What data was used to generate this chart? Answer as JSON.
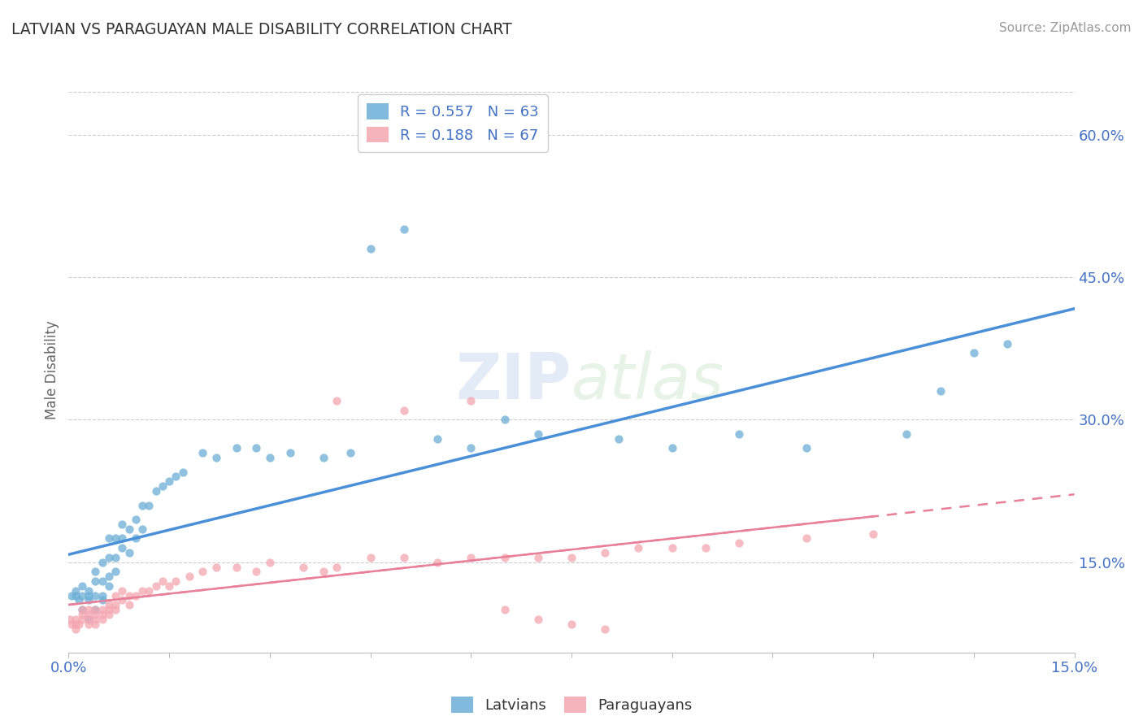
{
  "title": "LATVIAN VS PARAGUAYAN MALE DISABILITY CORRELATION CHART",
  "source": "Source: ZipAtlas.com",
  "ylabel_label": "Male Disability",
  "yticks": [
    0.15,
    0.3,
    0.45,
    0.6
  ],
  "ytick_labels": [
    "15.0%",
    "30.0%",
    "45.0%",
    "60.0%"
  ],
  "xlim": [
    0.0,
    0.15
  ],
  "ylim": [
    0.055,
    0.65
  ],
  "latvian_color": "#6baed6",
  "paraguayan_color": "#f4a6b0",
  "legend_latvian_R": "0.557",
  "legend_latvian_N": "63",
  "legend_paraguayan_R": "0.188",
  "legend_paraguayan_N": "67",
  "watermark": "ZIPatlas",
  "latvians_x": [
    0.0005,
    0.001,
    0.001,
    0.0015,
    0.002,
    0.002,
    0.002,
    0.003,
    0.003,
    0.003,
    0.003,
    0.004,
    0.004,
    0.004,
    0.004,
    0.005,
    0.005,
    0.005,
    0.005,
    0.006,
    0.006,
    0.006,
    0.006,
    0.007,
    0.007,
    0.007,
    0.008,
    0.008,
    0.008,
    0.009,
    0.009,
    0.01,
    0.01,
    0.011,
    0.011,
    0.012,
    0.013,
    0.014,
    0.015,
    0.016,
    0.017,
    0.02,
    0.022,
    0.025,
    0.028,
    0.03,
    0.033,
    0.038,
    0.042,
    0.05,
    0.055,
    0.06,
    0.065,
    0.07,
    0.045,
    0.082,
    0.09,
    0.1,
    0.11,
    0.125,
    0.13,
    0.135,
    0.14
  ],
  "latvians_y": [
    0.115,
    0.12,
    0.115,
    0.11,
    0.1,
    0.115,
    0.125,
    0.09,
    0.11,
    0.115,
    0.12,
    0.1,
    0.115,
    0.13,
    0.14,
    0.11,
    0.115,
    0.13,
    0.15,
    0.125,
    0.135,
    0.155,
    0.175,
    0.14,
    0.155,
    0.175,
    0.165,
    0.175,
    0.19,
    0.16,
    0.185,
    0.175,
    0.195,
    0.185,
    0.21,
    0.21,
    0.225,
    0.23,
    0.235,
    0.24,
    0.245,
    0.265,
    0.26,
    0.27,
    0.27,
    0.26,
    0.265,
    0.26,
    0.265,
    0.5,
    0.28,
    0.27,
    0.3,
    0.285,
    0.48,
    0.28,
    0.27,
    0.285,
    0.27,
    0.285,
    0.33,
    0.37,
    0.38
  ],
  "paraguayans_x": [
    0.0002,
    0.0005,
    0.001,
    0.001,
    0.001,
    0.0015,
    0.002,
    0.002,
    0.002,
    0.003,
    0.003,
    0.003,
    0.003,
    0.004,
    0.004,
    0.004,
    0.004,
    0.005,
    0.005,
    0.005,
    0.006,
    0.006,
    0.006,
    0.007,
    0.007,
    0.007,
    0.008,
    0.008,
    0.009,
    0.009,
    0.01,
    0.011,
    0.012,
    0.013,
    0.014,
    0.015,
    0.016,
    0.018,
    0.02,
    0.022,
    0.025,
    0.028,
    0.03,
    0.035,
    0.038,
    0.04,
    0.045,
    0.05,
    0.055,
    0.06,
    0.065,
    0.07,
    0.075,
    0.08,
    0.085,
    0.09,
    0.095,
    0.1,
    0.11,
    0.12,
    0.04,
    0.05,
    0.06,
    0.065,
    0.07,
    0.075,
    0.08
  ],
  "paraguayans_y": [
    0.09,
    0.085,
    0.08,
    0.085,
    0.09,
    0.085,
    0.09,
    0.095,
    0.1,
    0.085,
    0.09,
    0.095,
    0.1,
    0.085,
    0.09,
    0.095,
    0.1,
    0.09,
    0.095,
    0.1,
    0.095,
    0.1,
    0.105,
    0.1,
    0.105,
    0.115,
    0.11,
    0.12,
    0.105,
    0.115,
    0.115,
    0.12,
    0.12,
    0.125,
    0.13,
    0.125,
    0.13,
    0.135,
    0.14,
    0.145,
    0.145,
    0.14,
    0.15,
    0.145,
    0.14,
    0.145,
    0.155,
    0.155,
    0.15,
    0.155,
    0.155,
    0.155,
    0.155,
    0.16,
    0.165,
    0.165,
    0.165,
    0.17,
    0.175,
    0.18,
    0.32,
    0.31,
    0.32,
    0.1,
    0.09,
    0.085,
    0.08
  ]
}
